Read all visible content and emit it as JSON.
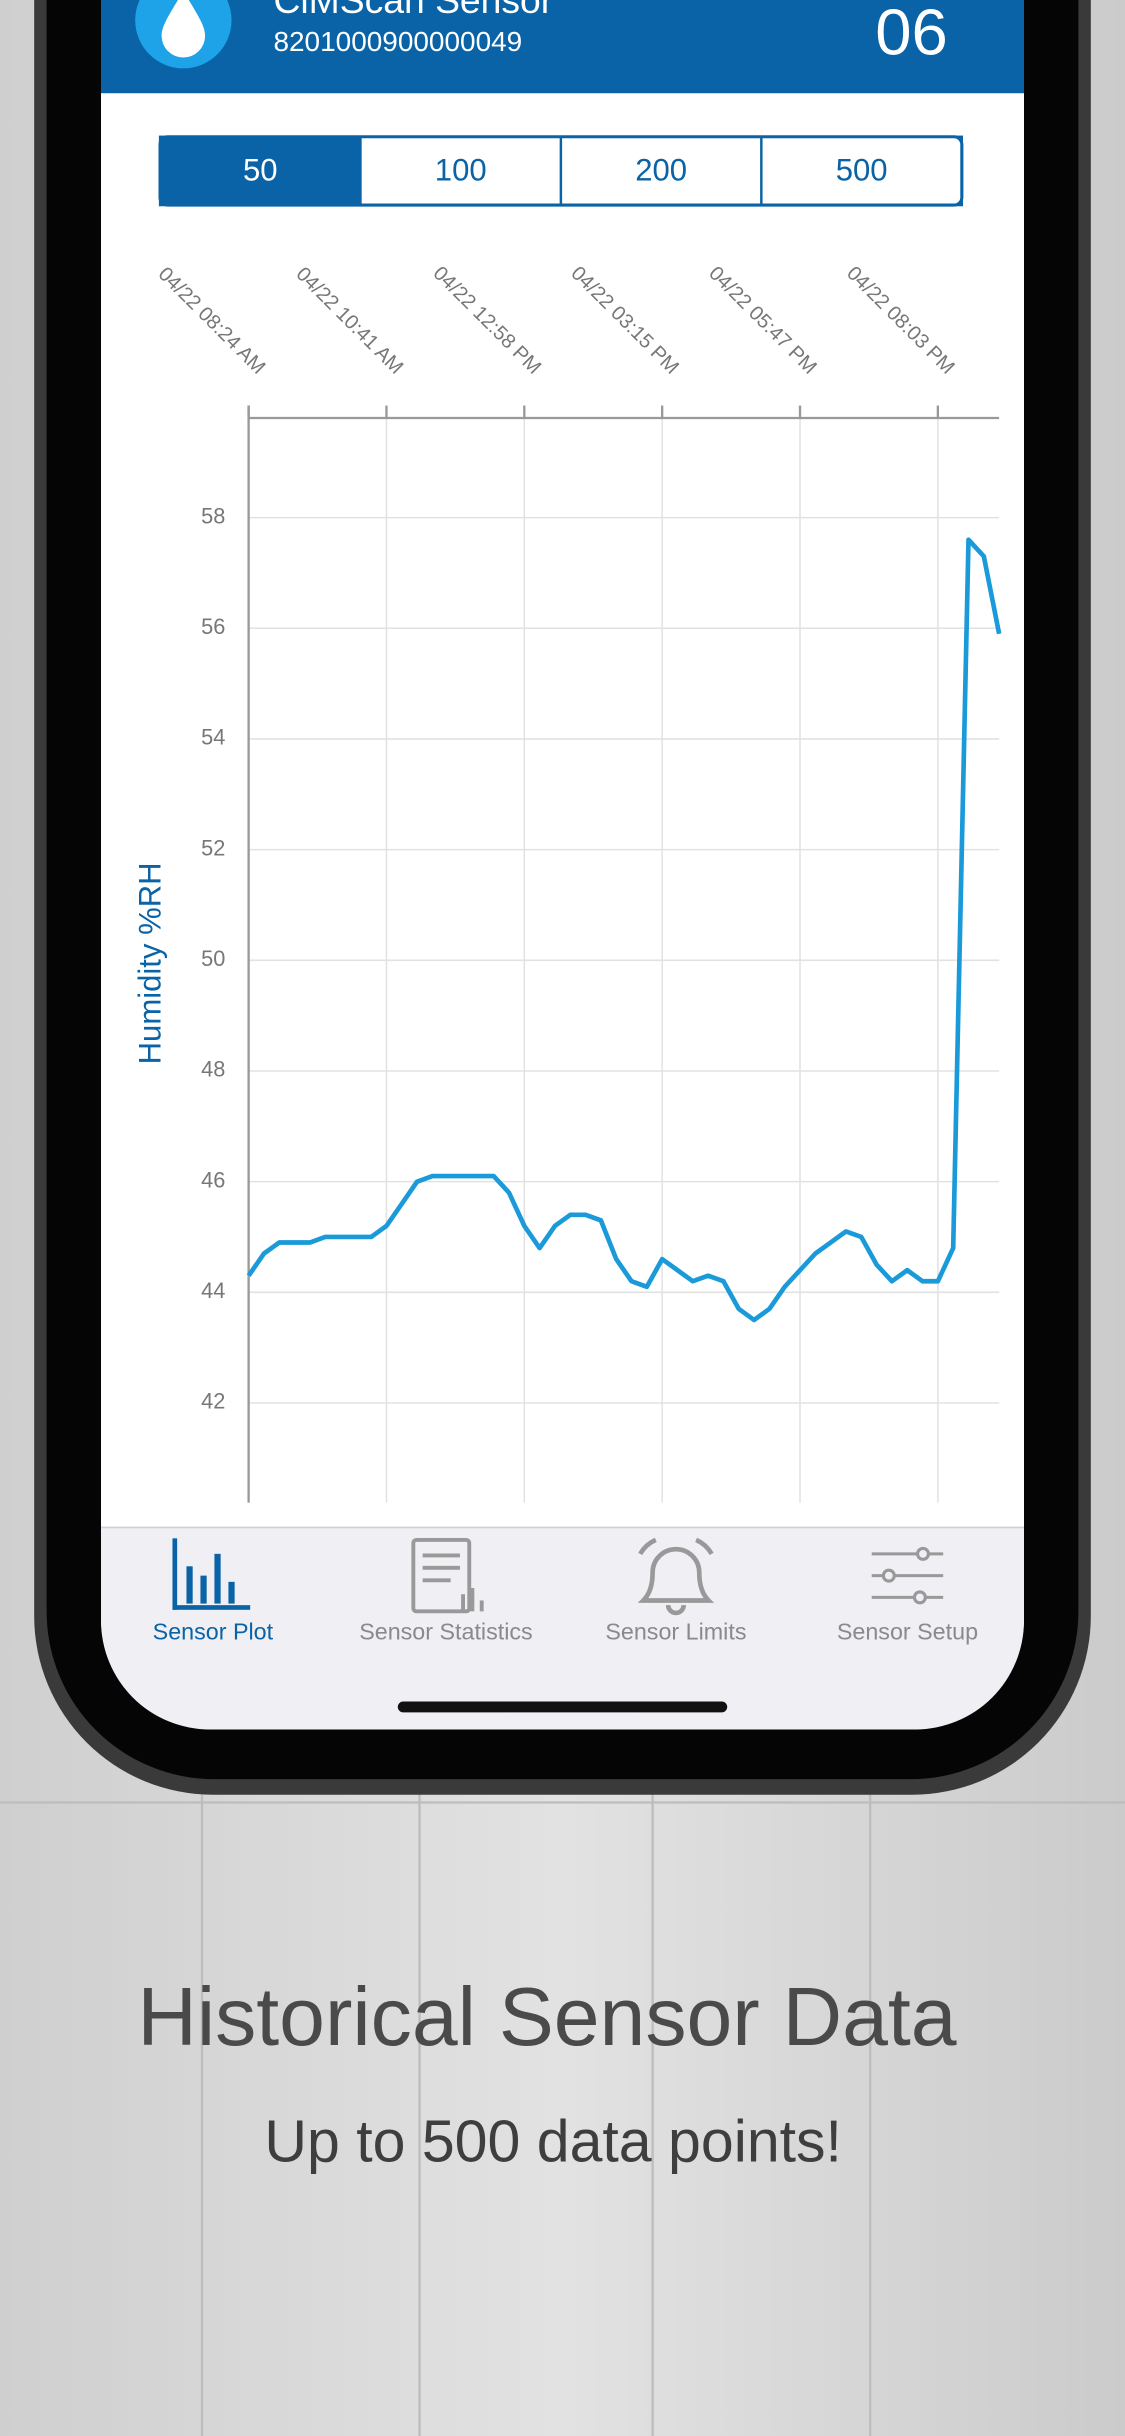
{
  "header": {
    "title": "ClMScan Sensor",
    "serial": "8201000900000049",
    "number": "06"
  },
  "segments": {
    "options": [
      "50",
      "100",
      "200",
      "500"
    ],
    "selected": 0
  },
  "chart_data": {
    "type": "line",
    "y_label": "Humidity %RH",
    "x": [
      0,
      1,
      2,
      3,
      4,
      5,
      6,
      7,
      8,
      9,
      10,
      11,
      12,
      13,
      14,
      15,
      16,
      17,
      18,
      19,
      20,
      21,
      22,
      23,
      24,
      25,
      26,
      27,
      28,
      29,
      30,
      31,
      32,
      33,
      34,
      35,
      36,
      37,
      38,
      39,
      40,
      41,
      42,
      43,
      44,
      45,
      46,
      47,
      48,
      49
    ],
    "values": [
      44.3,
      44.7,
      44.9,
      44.9,
      44.9,
      45.0,
      45.0,
      45.0,
      45.0,
      45.2,
      45.6,
      46.0,
      46.1,
      46.1,
      46.1,
      46.1,
      46.1,
      45.8,
      45.2,
      44.8,
      45.2,
      45.4,
      45.4,
      45.3,
      44.6,
      44.2,
      44.1,
      44.6,
      44.4,
      44.2,
      44.3,
      44.2,
      43.7,
      43.5,
      43.7,
      44.1,
      44.4,
      44.7,
      44.9,
      45.1,
      45.0,
      44.5,
      44.2,
      44.4,
      44.2,
      44.2,
      44.8,
      57.6,
      57.3,
      55.9
    ],
    "color": "#1a9ad9",
    "xlim": [
      0,
      49
    ],
    "xticks": [
      {
        "value": 0,
        "label": "04/22 08:24 AM"
      },
      {
        "value": 9,
        "label": "04/22 10:41 AM"
      },
      {
        "value": 18,
        "label": "04/22 12:58 PM"
      },
      {
        "value": 27,
        "label": "04/22 03:15 PM"
      },
      {
        "value": 36,
        "label": "04/22 05:47 PM"
      },
      {
        "value": 45,
        "label": "04/22 08:03 PM"
      }
    ],
    "ylim": [
      40.2,
      59.8
    ],
    "yticks": [
      42,
      44,
      46,
      48,
      50,
      52,
      54,
      56,
      58
    ],
    "grid": true
  },
  "tabs": {
    "items": [
      "Sensor Plot",
      "Sensor Statistics",
      "Sensor Limits",
      "Sensor Setup"
    ],
    "selected": 0
  },
  "footer": {
    "title": "Historical Sensor Data",
    "subtitle": "Up to 500 data points!"
  }
}
